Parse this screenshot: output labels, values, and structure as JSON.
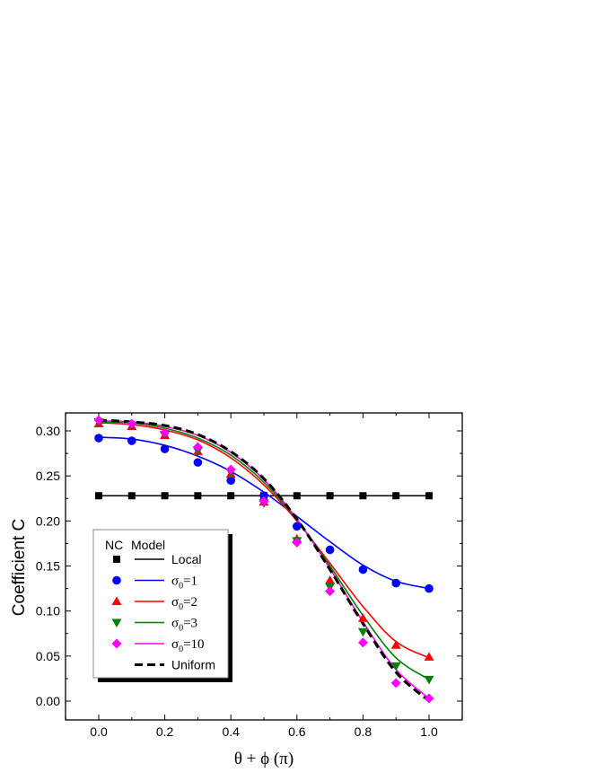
{
  "chart_data": {
    "type": "line",
    "xlabel": "θ + ϕ (π)",
    "ylabel": "Coefficient C",
    "xlim": [
      -0.1,
      1.1
    ],
    "ylim": [
      -0.02,
      0.32
    ],
    "xticks": [
      "0.0",
      "0.2",
      "0.4",
      "0.6",
      "0.8",
      "1.0"
    ],
    "yticks": [
      "0.00",
      "0.05",
      "0.10",
      "0.15",
      "0.20",
      "0.25",
      "0.30"
    ],
    "legend_position": "lower-left",
    "legend_header": {
      "markers": "NC",
      "lines": "Model"
    },
    "x": [
      0.0,
      0.1,
      0.2,
      0.3,
      0.4,
      0.5,
      0.6,
      0.7,
      0.8,
      0.9,
      1.0
    ],
    "series": [
      {
        "name": "Local",
        "sub": "",
        "color": "#000000",
        "marker": "square",
        "nc": [
          0.228,
          0.228,
          0.228,
          0.228,
          0.228,
          0.228,
          0.228,
          0.228,
          0.228,
          0.228,
          0.228
        ],
        "model": [
          0.228,
          0.228,
          0.228,
          0.228,
          0.228,
          0.228,
          0.228,
          0.228,
          0.228,
          0.228,
          0.228
        ]
      },
      {
        "name": "σ",
        "sub": "0",
        "suffix": "=1",
        "color": "#0000ff",
        "marker": "circle",
        "nc": [
          0.292,
          0.289,
          0.28,
          0.265,
          0.245,
          0.228,
          0.194,
          0.168,
          0.146,
          0.131,
          0.125
        ],
        "model": [
          0.293,
          0.291,
          0.284,
          0.272,
          0.255,
          0.232,
          0.205,
          0.177,
          0.151,
          0.133,
          0.125
        ]
      },
      {
        "name": "σ",
        "sub": "0",
        "suffix": "=2",
        "color": "#ff0000",
        "marker": "triangle-up",
        "nc": [
          0.308,
          0.305,
          0.295,
          0.277,
          0.252,
          0.221,
          0.18,
          0.134,
          0.092,
          0.062,
          0.049
        ],
        "model": [
          0.309,
          0.307,
          0.301,
          0.29,
          0.27,
          0.24,
          0.2,
          0.153,
          0.105,
          0.066,
          0.048
        ]
      },
      {
        "name": "σ",
        "sub": "0",
        "suffix": "=3",
        "color": "#008000",
        "marker": "triangle-down",
        "nc": [
          0.31,
          0.306,
          0.296,
          0.278,
          0.254,
          0.22,
          0.178,
          0.127,
          0.077,
          0.039,
          0.024
        ],
        "model": [
          0.31,
          0.309,
          0.303,
          0.292,
          0.273,
          0.243,
          0.201,
          0.15,
          0.095,
          0.048,
          0.024
        ]
      },
      {
        "name": "σ",
        "sub": "0",
        "suffix": "=10",
        "color": "#ff00ff",
        "marker": "diamond",
        "nc": [
          0.312,
          0.308,
          0.298,
          0.282,
          0.257,
          0.222,
          0.176,
          0.122,
          0.065,
          0.02,
          0.003
        ],
        "model": [
          0.311,
          0.31,
          0.305,
          0.295,
          0.276,
          0.246,
          0.202,
          0.147,
          0.088,
          0.035,
          0.003
        ]
      },
      {
        "name": "Uniform",
        "sub": "",
        "color": "#000000",
        "marker": "none",
        "dashed": true,
        "model": [
          0.312,
          0.31,
          0.306,
          0.296,
          0.277,
          0.247,
          0.202,
          0.146,
          0.086,
          0.032,
          0.0
        ]
      }
    ]
  }
}
